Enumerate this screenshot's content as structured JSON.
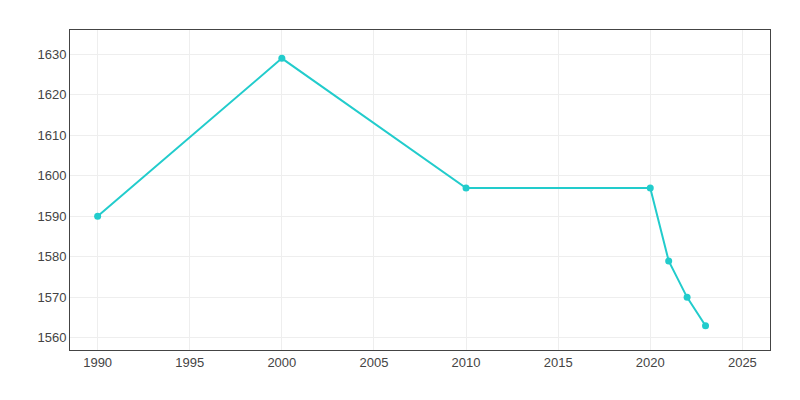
{
  "chart_data": {
    "type": "line",
    "x": [
      1990,
      2000,
      2010,
      2020,
      2021,
      2022,
      2023
    ],
    "values": [
      1590,
      1629,
      1597,
      1597,
      1579,
      1570,
      1563
    ],
    "color": "#22CCCC",
    "marker": "circle",
    "xlim": [
      1988.5,
      2026.5
    ],
    "ylim": [
      1557,
      1636
    ],
    "xticks": [
      1990,
      1995,
      2000,
      2005,
      2010,
      2015,
      2020,
      2025
    ],
    "yticks": [
      1560,
      1570,
      1580,
      1590,
      1600,
      1610,
      1620,
      1630
    ],
    "grid": true
  }
}
